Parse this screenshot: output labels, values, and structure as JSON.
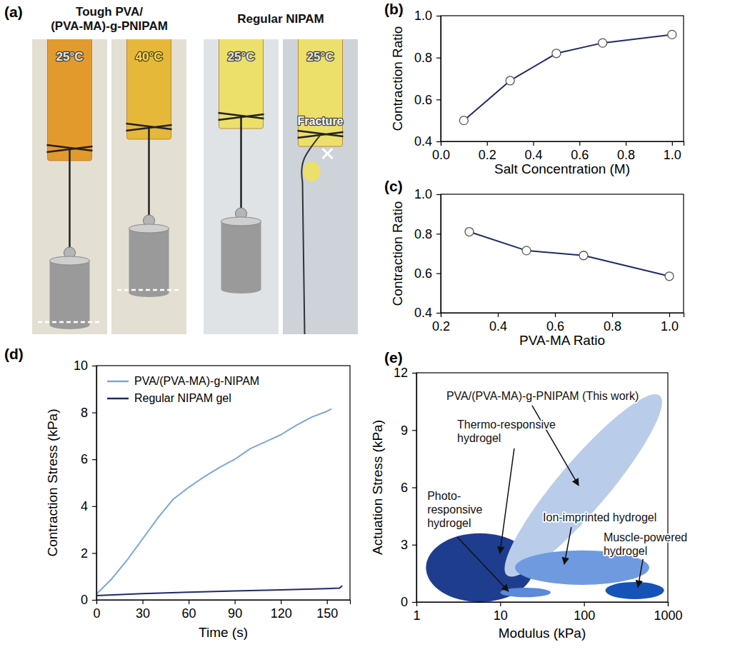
{
  "chart_data": [
    {
      "type": "photo",
      "panel": "(a)",
      "groups": [
        {
          "label": "Tough PVA/ (PVA-MA)-g-PNIPAM",
          "photos": [
            {
              "temperature": "25°C",
              "color": "#dbe9f5"
            },
            {
              "temperature": "40°C",
              "color": "#ffe14d"
            }
          ]
        },
        {
          "label": "Regular NIPAM",
          "photos": [
            {
              "temperature": "25°C",
              "color": "#dbe9f5"
            },
            {
              "temperature": "25°C",
              "color": "#dbe9f5",
              "annotation": "Fracture"
            }
          ]
        }
      ]
    },
    {
      "type": "line",
      "panel": "(b)",
      "x_label": "Salt Concentration (M)",
      "y_label": "Contraction Ratio",
      "x": [
        0.1,
        0.3,
        0.5,
        0.7,
        1.0
      ],
      "values": [
        0.5,
        0.69,
        0.82,
        0.87,
        0.91
      ],
      "color": "#1f2a6b",
      "marker": "circle",
      "xlim": [
        0,
        1.05
      ],
      "ylim": [
        0.4,
        1.0
      ],
      "xticks": [
        {
          "value": 0,
          "label": "0.0"
        },
        0.2,
        0.4,
        0.6,
        0.8,
        {
          "value": 1,
          "label": "1.0"
        }
      ],
      "yticks": [
        0.4,
        0.6,
        0.8,
        {
          "value": 1,
          "label": "1.0"
        }
      ]
    },
    {
      "type": "line",
      "panel": "(c)",
      "x_label": "PVA-MA Ratio",
      "y_label": "Contraction Ratio",
      "x": [
        0.3,
        0.5,
        0.7,
        1.0
      ],
      "values": [
        0.81,
        0.715,
        0.69,
        0.585
      ],
      "color": "#1f2a6b",
      "marker": "circle",
      "xlim": [
        0.2,
        1.05
      ],
      "ylim": [
        0.4,
        1.0
      ],
      "xticks": [
        0.2,
        0.4,
        0.6,
        0.8,
        {
          "value": 1,
          "label": "1.0"
        }
      ],
      "yticks": [
        0.4,
        0.6,
        0.8,
        {
          "value": 1,
          "label": "1.0"
        }
      ]
    },
    {
      "type": "line",
      "panel": "(d)",
      "x_label": "Time (s)",
      "y_label": "Contraction Stress (kPa)",
      "xlim": [
        0,
        165
      ],
      "ylim": [
        0,
        10
      ],
      "xticks": [
        0,
        30,
        60,
        90,
        120,
        150
      ],
      "yticks": [
        0,
        2,
        4,
        6,
        8,
        10
      ],
      "legend": "upper left",
      "series": [
        {
          "name": "PVA/(PVA-MA)-g-NIPAM",
          "color": "#7aa6dc",
          "x": [
            0,
            10,
            20,
            30,
            40,
            50,
            60,
            70,
            80,
            90,
            100,
            110,
            120,
            130,
            140,
            150,
            153
          ],
          "values": [
            0.25,
            0.9,
            1.7,
            2.6,
            3.5,
            4.3,
            4.8,
            5.25,
            5.65,
            6.0,
            6.45,
            6.75,
            7.05,
            7.45,
            7.8,
            8.05,
            8.15
          ]
        },
        {
          "name": "Regular NIPAM gel",
          "color": "#1f2a6b",
          "x": [
            0,
            30,
            60,
            90,
            120,
            150,
            158,
            160
          ],
          "values": [
            0.18,
            0.27,
            0.33,
            0.38,
            0.43,
            0.48,
            0.5,
            0.6
          ]
        }
      ]
    },
    {
      "type": "ellipse",
      "panel": "(e)",
      "x_label": "Modulus (kPa)",
      "y_label": "Actuation Stress (kPa)",
      "log": "x",
      "xlim": [
        1,
        1000
      ],
      "ylim": [
        0,
        12
      ],
      "xticks": [
        1,
        10,
        100,
        1000
      ],
      "yticks": [
        0,
        3,
        6,
        9,
        12
      ],
      "regions": [
        {
          "name": "Thermo-responsive hydrogel",
          "color": "#1f3d8f",
          "x": [
            1.3,
            25
          ],
          "y": [
            1.8,
            1.8
          ],
          "width": 1.8
        },
        {
          "name": "PVA/(PVA-MA)-g-PNIPAM (This work)",
          "color": "#b9cdea",
          "x": [
            12,
            800
          ],
          "y": [
            1.4,
            10.8
          ],
          "width": 1.3
        },
        {
          "name": "Ion-imprinted hydrogel",
          "color": "#6f9ae0",
          "x": [
            15,
            600
          ],
          "y": [
            1.8,
            1.8
          ],
          "width": 0.9
        },
        {
          "name": "Photo-responsive hydrogel",
          "color": "#5a8ad8",
          "x": [
            10,
            40
          ],
          "y": [
            0.5,
            0.5
          ],
          "width": 0.25
        },
        {
          "name": "Muscle-powered hydrogel",
          "color": "#1553b8",
          "x": [
            180,
            900
          ],
          "y": [
            0.6,
            0.6
          ],
          "width": 0.45
        }
      ]
    }
  ]
}
